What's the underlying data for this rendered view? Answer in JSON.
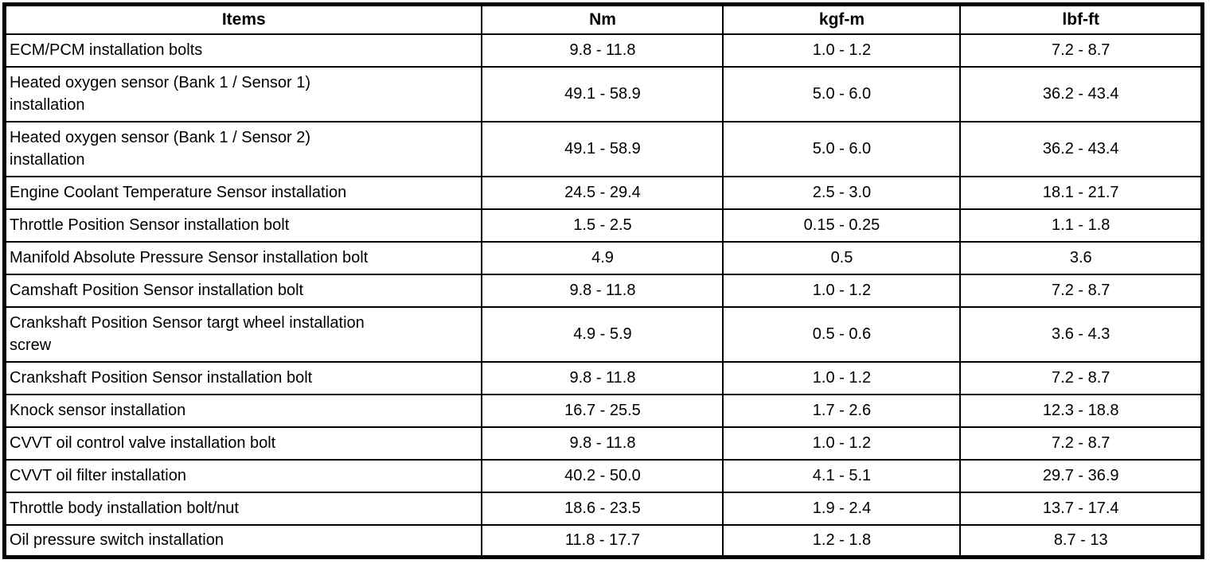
{
  "table": {
    "columns": [
      "Items",
      "Nm",
      "kgf-m",
      "lbf-ft"
    ],
    "rows": [
      {
        "item": "ECM/PCM installation bolts",
        "nm": "9.8 - 11.8",
        "kgfm": "1.0 - 1.2",
        "lbfft": "7.2 - 8.7"
      },
      {
        "item": "Heated oxygen sensor (Bank 1 / Sensor 1)\ninstallation",
        "nm": "49.1 - 58.9",
        "kgfm": "5.0 - 6.0",
        "lbfft": "36.2 - 43.4"
      },
      {
        "item": "Heated oxygen sensor (Bank 1 / Sensor 2)\ninstallation",
        "nm": "49.1 - 58.9",
        "kgfm": "5.0 - 6.0",
        "lbfft": "36.2 - 43.4"
      },
      {
        "item": "Engine Coolant Temperature Sensor installation",
        "nm": "24.5 - 29.4",
        "kgfm": "2.5 - 3.0",
        "lbfft": "18.1 - 21.7"
      },
      {
        "item": "Throttle Position Sensor installation bolt",
        "nm": "1.5 - 2.5",
        "kgfm": "0.15 - 0.25",
        "lbfft": "1.1 - 1.8"
      },
      {
        "item": "Manifold Absolute Pressure Sensor installation bolt",
        "nm": "4.9",
        "kgfm": "0.5",
        "lbfft": "3.6"
      },
      {
        "item": "Camshaft Position Sensor installation bolt",
        "nm": "9.8 - 11.8",
        "kgfm": "1.0 - 1.2",
        "lbfft": "7.2 - 8.7"
      },
      {
        "item": "Crankshaft Position Sensor targt wheel installation\nscrew",
        "nm": "4.9 - 5.9",
        "kgfm": "0.5 - 0.6",
        "lbfft": "3.6 - 4.3"
      },
      {
        "item": "Crankshaft Position Sensor installation bolt",
        "nm": "9.8 - 11.8",
        "kgfm": "1.0 - 1.2",
        "lbfft": "7.2 - 8.7"
      },
      {
        "item": "Knock sensor installation",
        "nm": "16.7 - 25.5",
        "kgfm": "1.7 - 2.6",
        "lbfft": "12.3 - 18.8"
      },
      {
        "item": "CVVT oil control valve installation bolt",
        "nm": "9.8 - 11.8",
        "kgfm": "1.0 - 1.2",
        "lbfft": "7.2 - 8.7"
      },
      {
        "item": "CVVT oil filter installation",
        "nm": "40.2 - 50.0",
        "kgfm": "4.1 - 5.1",
        "lbfft": "29.7 - 36.9"
      },
      {
        "item": "Throttle body installation bolt/nut",
        "nm": "18.6 - 23.5",
        "kgfm": "1.9 - 2.4",
        "lbfft": "13.7 - 17.4"
      },
      {
        "item": "Oil pressure switch installation",
        "nm": "11.8 - 17.7",
        "kgfm": "1.2 - 1.8",
        "lbfft": "8.7 - 13"
      }
    ]
  }
}
